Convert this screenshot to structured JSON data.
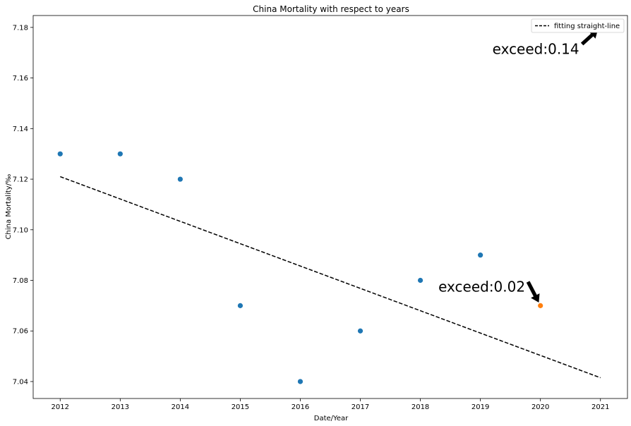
{
  "chart_data": {
    "type": "scatter",
    "title": "China Mortality with respect to years",
    "xlabel": "Date/Year",
    "ylabel": "China Mortality/‰",
    "xlim": [
      2011.55,
      2021.45
    ],
    "ylim": [
      7.0333,
      7.1847
    ],
    "xticks": [
      2012,
      2013,
      2014,
      2015,
      2016,
      2017,
      2018,
      2019,
      2020,
      2021
    ],
    "yticks": [
      7.04,
      7.06,
      7.08,
      7.1,
      7.12,
      7.14,
      7.16,
      7.18
    ],
    "grid": false,
    "legend_position": "top-right",
    "points": [
      {
        "x": 2012,
        "y": 7.13,
        "color": "#1f77b4"
      },
      {
        "x": 2013,
        "y": 7.13,
        "color": "#1f77b4"
      },
      {
        "x": 2014,
        "y": 7.12,
        "color": "#1f77b4"
      },
      {
        "x": 2015,
        "y": 7.07,
        "color": "#1f77b4"
      },
      {
        "x": 2016,
        "y": 7.04,
        "color": "#1f77b4"
      },
      {
        "x": 2017,
        "y": 7.06,
        "color": "#1f77b4"
      },
      {
        "x": 2018,
        "y": 7.08,
        "color": "#1f77b4"
      },
      {
        "x": 2019,
        "y": 7.09,
        "color": "#1f77b4"
      },
      {
        "x": 2020,
        "y": 7.07,
        "color": "#ff7f0e"
      },
      {
        "x": 2021,
        "y": 7.18,
        "color": "#ff7f0e"
      }
    ],
    "fit_line": {
      "name": "fitting straight-line",
      "style": "dashed",
      "color": "#000000",
      "x": [
        2012,
        2021
      ],
      "y": [
        7.121,
        7.0415
      ]
    },
    "annotations": [
      {
        "text": "exceed:0.02",
        "point": {
          "x": 2020,
          "y": 7.07
        },
        "text_pos": {
          "x": 2018.3,
          "y": 7.0755
        }
      },
      {
        "text": "exceed:0.14",
        "point": {
          "x": 2021,
          "y": 7.18
        },
        "text_pos": {
          "x": 2019.2,
          "y": 7.1695
        }
      }
    ]
  }
}
